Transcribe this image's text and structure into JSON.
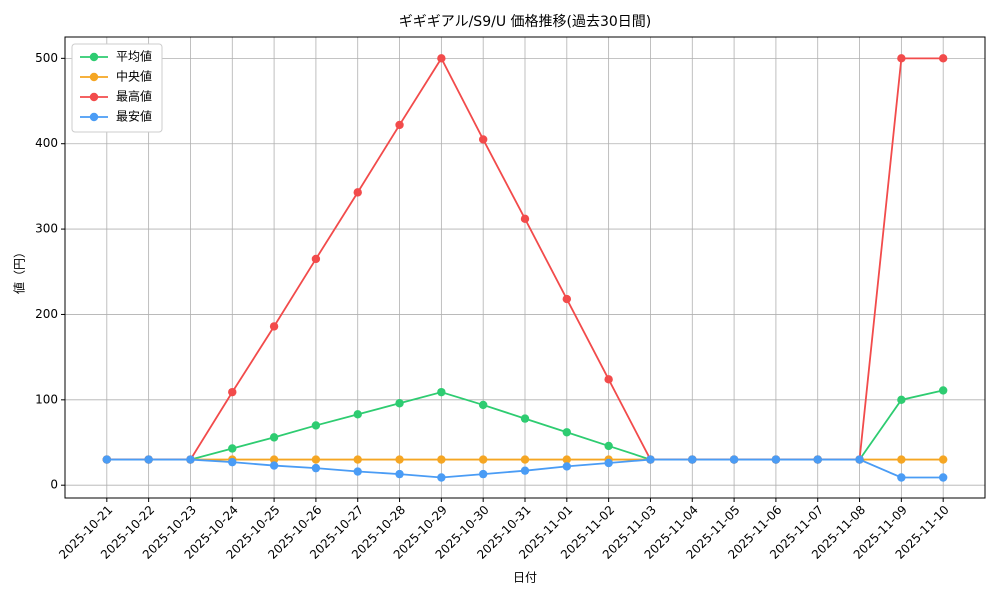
{
  "chart_data": {
    "type": "line",
    "title": "ギギギアル/S9/U 価格推移(過去30日間)",
    "x_label": "日付",
    "y_label": "値（円）",
    "categories": [
      "2025-10-21",
      "2025-10-22",
      "2025-10-23",
      "2025-10-24",
      "2025-10-25",
      "2025-10-26",
      "2025-10-27",
      "2025-10-28",
      "2025-10-29",
      "2025-10-30",
      "2025-10-31",
      "2025-11-01",
      "2025-11-02",
      "2025-11-03",
      "2025-11-04",
      "2025-11-05",
      "2025-11-06",
      "2025-11-07",
      "2025-11-08",
      "2025-11-09",
      "2025-11-10"
    ],
    "series": [
      {
        "name": "平均値",
        "color": "#2ecc71",
        "values": [
          30,
          30,
          30,
          43,
          56,
          70,
          83,
          96,
          109,
          94,
          78,
          62,
          46,
          30,
          30,
          30,
          30,
          30,
          30,
          100,
          111
        ]
      },
      {
        "name": "中央値",
        "color": "#f5a623",
        "values": [
          30,
          30,
          30,
          30,
          30,
          30,
          30,
          30,
          30,
          30,
          30,
          30,
          30,
          30,
          30,
          30,
          30,
          30,
          30,
          30,
          30
        ]
      },
      {
        "name": "最高値",
        "color": "#f24b4b",
        "values": [
          30,
          30,
          30,
          109,
          186,
          265,
          343,
          422,
          500,
          405,
          312,
          218,
          124,
          30,
          30,
          30,
          30,
          30,
          30,
          500,
          500
        ]
      },
      {
        "name": "最安値",
        "color": "#4a9cf5",
        "values": [
          30,
          30,
          30,
          27,
          23,
          20,
          16,
          13,
          9,
          13,
          17,
          22,
          26,
          30,
          30,
          30,
          30,
          30,
          30,
          9,
          9
        ]
      }
    ],
    "ylim": [
      -15,
      525
    ],
    "yticks": [
      0,
      100,
      200,
      300,
      400,
      500
    ],
    "grid": true,
    "legend": "upper-left"
  }
}
